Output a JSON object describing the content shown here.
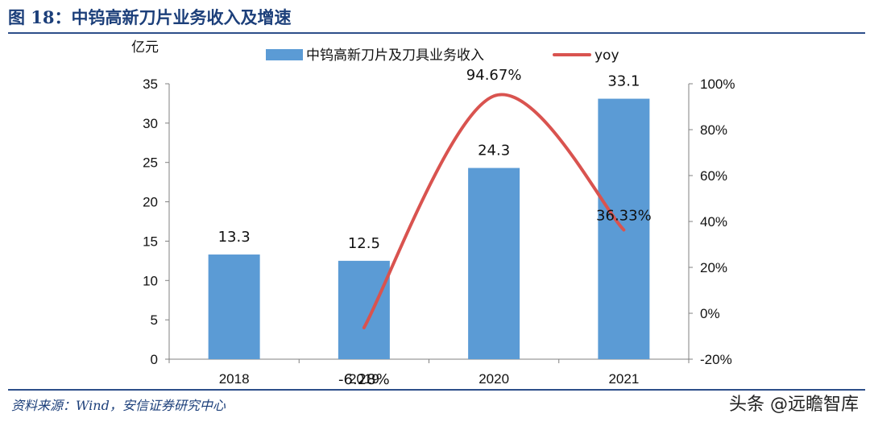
{
  "figure": {
    "title": "图 18：中钨高新刀片业务收入及增速",
    "source": "资料来源：Wind，安信证券研究中心",
    "watermark": "头条 @远瞻智库"
  },
  "colors": {
    "bar": "#5b9bd5",
    "line": "#d9534f",
    "title": "#1c3f7a",
    "axis": "#808080"
  },
  "chart_data": {
    "type": "bar+line",
    "categories": [
      "2018",
      "2019",
      "2020",
      "2021"
    ],
    "series": [
      {
        "name": "中钨高新刀片及刀具业务收入",
        "type": "bar",
        "axis": "left",
        "values": [
          13.3,
          12.5,
          24.3,
          33.1
        ],
        "labels": [
          "13.3",
          "12.5",
          "24.3",
          "33.1"
        ]
      },
      {
        "name": "yoy",
        "type": "line",
        "axis": "right",
        "values": [
          null,
          -6.28,
          94.67,
          36.33
        ],
        "labels": [
          "",
          "-6.28%",
          "94.67%",
          "36.33%"
        ]
      }
    ],
    "y_left": {
      "unit_label": "亿元",
      "min": 0,
      "max": 35,
      "ticks": [
        "0",
        "5",
        "10",
        "15",
        "20",
        "25",
        "30",
        "35"
      ]
    },
    "y_right": {
      "min": -20,
      "max": 100,
      "ticks": [
        "-20%",
        "0%",
        "20%",
        "40%",
        "60%",
        "80%",
        "100%"
      ]
    },
    "legend_position": "top",
    "grid": false
  }
}
